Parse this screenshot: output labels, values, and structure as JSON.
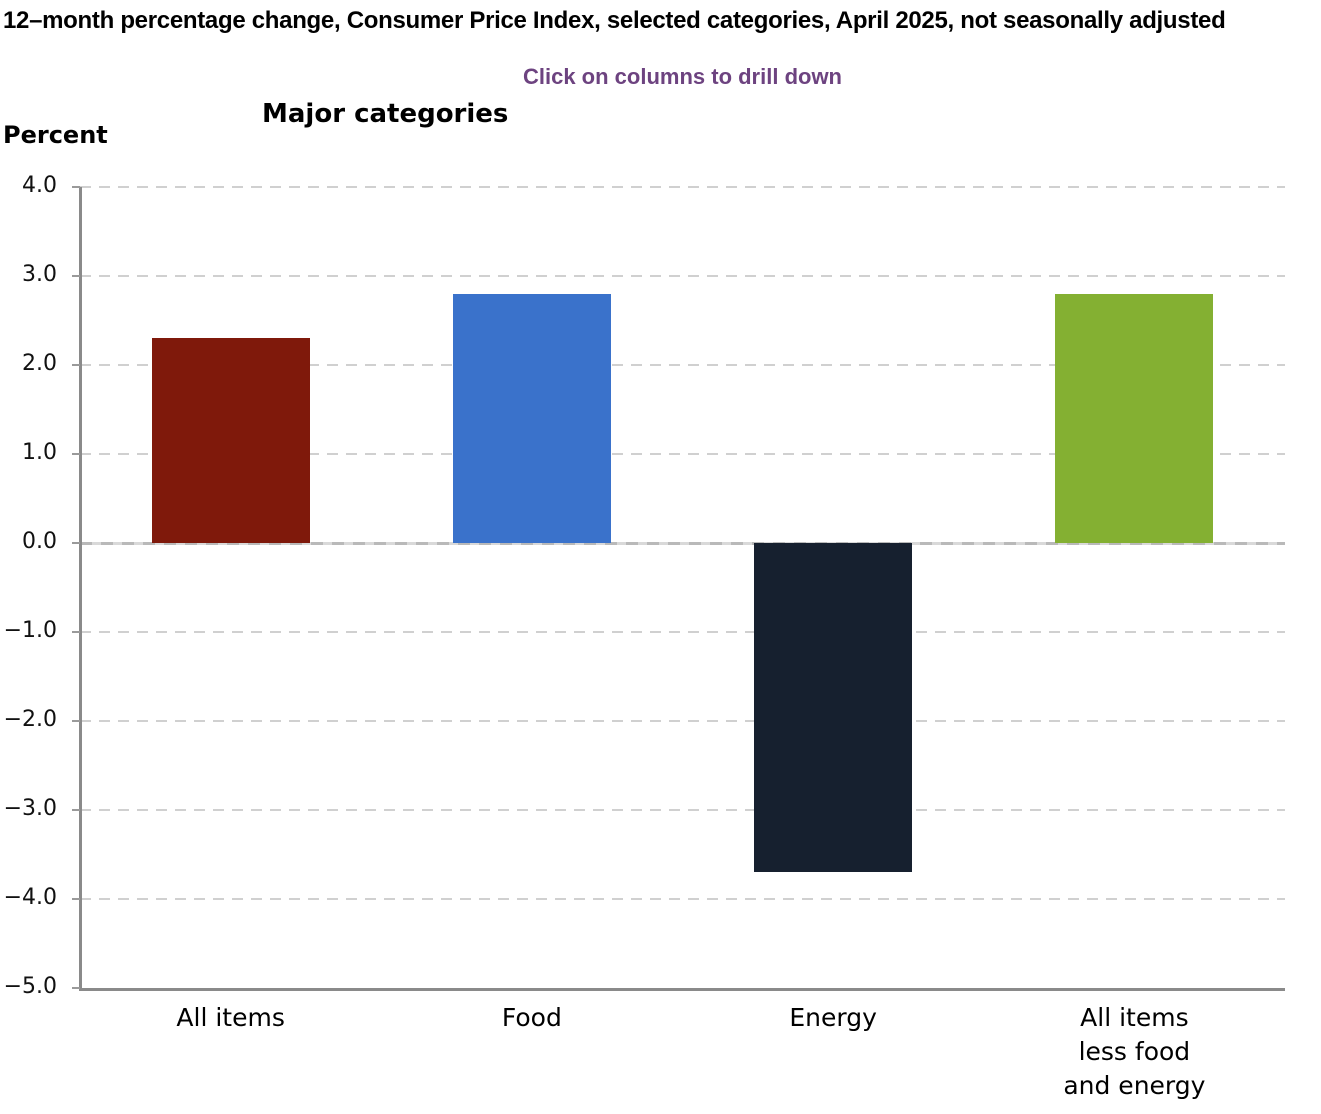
{
  "page": {
    "title": "12–month percentage change, Consumer Price Index, selected categories, April 2025, not seasonally adjusted",
    "subtitle": "Click on columns to drill down"
  },
  "chart_data": {
    "type": "bar",
    "title": "Major categories",
    "ylabel": "Percent",
    "categories": [
      "All items",
      "Food",
      "Energy",
      "All items less food and energy"
    ],
    "category_label_lines": [
      [
        "All items"
      ],
      [
        "Food"
      ],
      [
        "Energy"
      ],
      [
        "All items",
        "less food",
        "and energy"
      ]
    ],
    "values": [
      2.3,
      2.8,
      -3.7,
      2.8
    ],
    "ylim": [
      -5.0,
      4.0
    ],
    "yticks": [
      "4.0",
      "3.0",
      "2.0",
      "1.0",
      "0.0",
      "−1.0",
      "−2.0",
      "−3.0",
      "−4.0",
      "−5.0"
    ],
    "grid": true,
    "legend": false,
    "bar_colors": [
      "#7f190b",
      "#3a72cb",
      "#16202f",
      "#84b032"
    ]
  },
  "colors": {
    "title_text": "#000000",
    "subtitle_text": "#6d4380",
    "gridline": "#d0d0d0",
    "zero_line_dash": "#b9b9b9",
    "zero_line_light": "#d9d9d9",
    "axis_line": "#8a8a8a",
    "tick_mark": "#9a9a9a"
  }
}
